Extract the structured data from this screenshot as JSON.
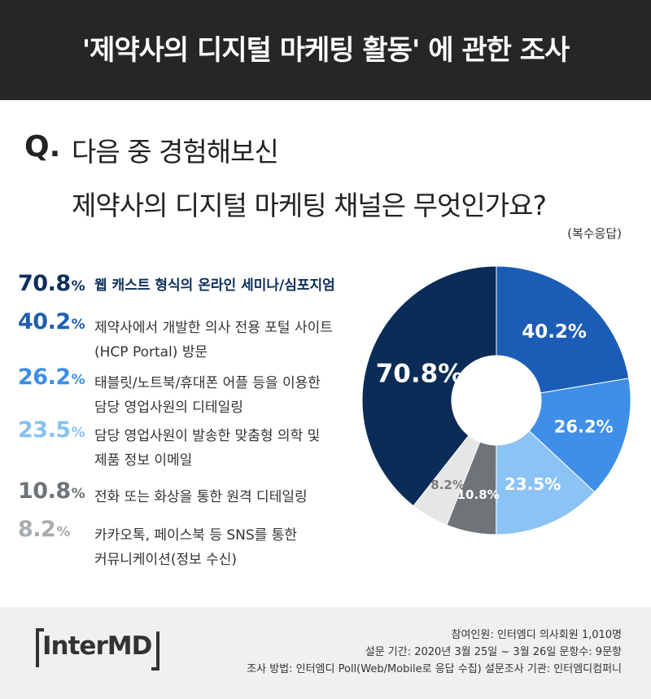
{
  "header": {
    "title": "'제약사의 디지털 마케팅 활동' 에 관한 조사"
  },
  "question": {
    "mark": "Q.",
    "line1": "다음 중 경험해보신",
    "line2": "제약사의 디지털 마케팅 채널은 무엇인가요?",
    "note": "(복수응답)"
  },
  "items": [
    {
      "value": "70.8",
      "symbol": "%",
      "lines": [
        "웹 캐스트 형식의 온라인 세미나/심포지엄"
      ],
      "color": "#0d2f5c",
      "bold": true
    },
    {
      "value": "40.2",
      "symbol": "%",
      "lines": [
        "제약사에서 개발한 의사 전용 포털 사이트",
        "(HCP Portal) 방문"
      ],
      "color": "#1f5fb0",
      "bold": false
    },
    {
      "value": "26.2",
      "symbol": "%",
      "lines": [
        "태블릿/노트북/휴대폰 어플 등을 이용한",
        "담당 영업사원의 디테일링"
      ],
      "color": "#3d8fe6",
      "bold": false
    },
    {
      "value": "23.5",
      "symbol": "%",
      "lines": [
        "담당 영업사원이 발송한 맞춤형 의학 및",
        "제품 정보 이메일"
      ],
      "color": "#86c1f4",
      "bold": false
    },
    {
      "value": "10.8",
      "symbol": "%",
      "lines": [
        "전화 또는 화상을 통한 원격 디테일링"
      ],
      "color": "#6e7377",
      "bold": false
    },
    {
      "value": "8.2",
      "symbol": "%",
      "lines": [
        "카카오톡, 페이스북 등 SNS를 통한",
        "커뮤니케이션(정보 수신)"
      ],
      "color": "#a9acaf",
      "bold": false
    }
  ],
  "chart_data": {
    "type": "pie",
    "donut": true,
    "categories": [
      "웹 캐스트 형식의 온라인 세미나/심포지엄",
      "제약사에서 개발한 의사 전용 포털 사이트 (HCP Portal) 방문",
      "태블릿/노트북/휴대폰 어플 등을 이용한 담당 영업사원의 디테일링",
      "담당 영업사원이 발송한 맞춤형 의학 및 제품 정보 이메일",
      "전화 또는 화상을 통한 원격 디테일링",
      "카카오톡, 페이스북 등 SNS를 통한 커뮤니케이션(정보 수신)"
    ],
    "values": [
      70.8,
      40.2,
      26.2,
      23.5,
      10.8,
      8.2
    ],
    "labels": [
      "70.8%",
      "40.2%",
      "26.2%",
      "23.5%",
      "10.8%",
      "8.2%"
    ],
    "colors": [
      "#0b2c57",
      "#1b5db6",
      "#3f8fe8",
      "#8cc3f5",
      "#6f7478",
      "#e6e6e6"
    ],
    "label_colors": [
      "#ffffff",
      "#ffffff",
      "#ffffff",
      "#ffffff",
      "#ffffff",
      "#7a7a7a"
    ]
  },
  "footer": {
    "logo": "InterMD",
    "line1": "참여인원: 인터엠디 의사회원 1,010명",
    "line2": "설문 기간: 2020년 3월 25일 ~ 3월 26일   문항수: 9문항",
    "line3": "조사 방법: 인터엠디 Poll(Web/Mobile로 응답 수집)   설문조사 기관: 인터엠디컴퍼니"
  }
}
